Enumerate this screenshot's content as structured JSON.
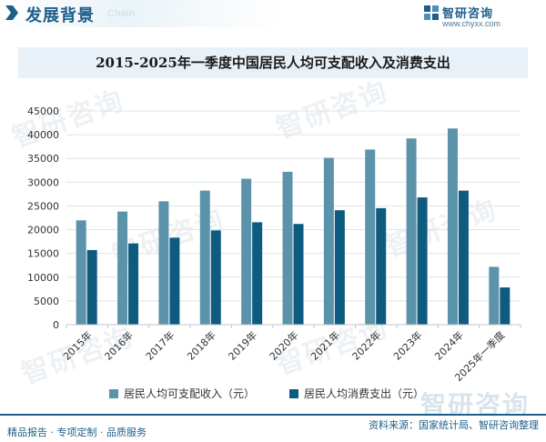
{
  "header": {
    "section_title": "发展背景",
    "section_subtitle": "Chain",
    "brand_name": "智研咨询",
    "brand_url": "www.chyxx.com"
  },
  "watermark": "智研咨询",
  "colors": {
    "income": "#5b93aa",
    "expense": "#0f5b80",
    "accent": "#1d5f8a",
    "grid": "#dfe4e8"
  },
  "chart_data": {
    "type": "bar",
    "title": "2015-2025年一季度中国居民人均可支配收入及消费支出",
    "xlabel": "",
    "ylabel": "",
    "categories": [
      "2015年",
      "2016年",
      "2017年",
      "2018年",
      "2019年",
      "2020年",
      "2021年",
      "2022年",
      "2023年",
      "2024年",
      "2025年一季度"
    ],
    "series": [
      {
        "name": "居民人均可支配收入（元）",
        "values": [
          21966,
          23821,
          25974,
          28228,
          30733,
          32189,
          35128,
          36883,
          39218,
          41314,
          12179
        ]
      },
      {
        "name": "居民人均消费支出（元）",
        "values": [
          15712,
          17111,
          18322,
          19853,
          21559,
          21210,
          24100,
          24538,
          26796,
          28227,
          7842
        ]
      }
    ],
    "ylim": [
      0,
      45000
    ],
    "yticks": [
      0,
      5000,
      10000,
      15000,
      20000,
      25000,
      30000,
      35000,
      40000,
      45000
    ],
    "grid": true,
    "legend_position": "bottom"
  },
  "footer": {
    "left_text": "精品报告 · 专项定制 · 品质服务",
    "right_text": "资料来源：国家统计局、智研咨询整理"
  }
}
